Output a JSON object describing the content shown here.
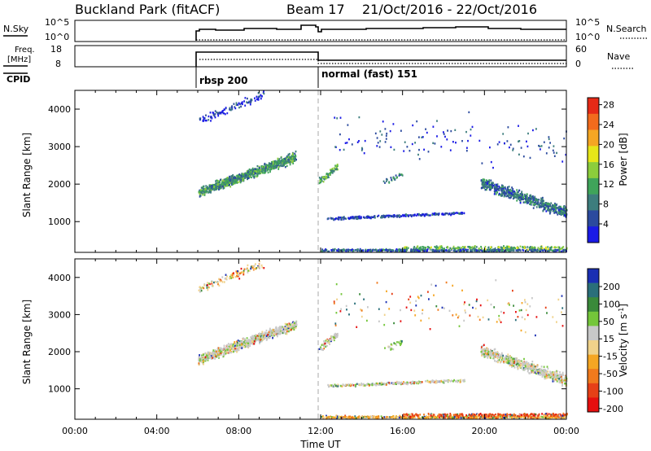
{
  "header": {
    "station": "Buckland Park (fitACF)",
    "beam": "Beam 17",
    "dates": "21/Oct/2016 - 22/Oct/2016"
  },
  "top_panels": {
    "nsky_label": "N.Sky",
    "nsky_ticks": [
      "10^5",
      "10^0"
    ],
    "nsearch_label": "N.Search",
    "nsearch_ticks": [
      "10^5",
      "10^0"
    ],
    "freq_label_1": "Freq.",
    "freq_label_2": "[MHz]",
    "freq_ticks": [
      "18",
      "8"
    ],
    "nave_label": "Nave",
    "nave_ticks": [
      "60",
      "0"
    ],
    "cpid_label": "CPID",
    "cpid_modes": [
      {
        "label": "rbsp 200",
        "start_hour": 6,
        "end_hour": 12
      },
      {
        "label": "normal (fast) 151",
        "start_hour": 12,
        "end_hour": 24
      }
    ]
  },
  "chart_data": [
    {
      "type": "heatmap",
      "name": "Power",
      "ylabel": "Slant Range [km]",
      "xlim": [
        0,
        24
      ],
      "ylim": [
        180,
        4500
      ],
      "ytick_labels": [
        "1000",
        "2000",
        "3000",
        "4000"
      ],
      "colorbar": {
        "label": "Power [dB]",
        "tick_labels": [
          "4",
          "8",
          "12",
          "16",
          "20",
          "24",
          "28"
        ],
        "colors": [
          "#1a1ae6",
          "#2b4a9e",
          "#3d7d7d",
          "#3fa45a",
          "#8ccd3c",
          "#e6e619",
          "#f5a623",
          "#f26b1d",
          "#e62a17"
        ]
      }
    },
    {
      "type": "heatmap",
      "name": "Velocity",
      "ylabel": "Slant Range [km]",
      "xlabel": "Time UT",
      "xlim": [
        0,
        24
      ],
      "ylim": [
        180,
        4500
      ],
      "ytick_labels": [
        "1000",
        "2000",
        "3000",
        "4000"
      ],
      "xtick_labels": [
        "00:00",
        "04:00",
        "08:00",
        "12:00",
        "16:00",
        "20:00",
        "00:00"
      ],
      "colorbar": {
        "label": "Velocity [m s-1]",
        "tick_labels": [
          "200",
          "100",
          "50",
          "15",
          "-15",
          "-50",
          "-100",
          "-200"
        ],
        "colors": [
          "#1a2fb3",
          "#2a6f7a",
          "#3a8a3a",
          "#74c63a",
          "#c8c8c8",
          "#f0d28a",
          "#f5a623",
          "#f07a1d",
          "#e64017",
          "#e60f0f"
        ]
      }
    }
  ]
}
